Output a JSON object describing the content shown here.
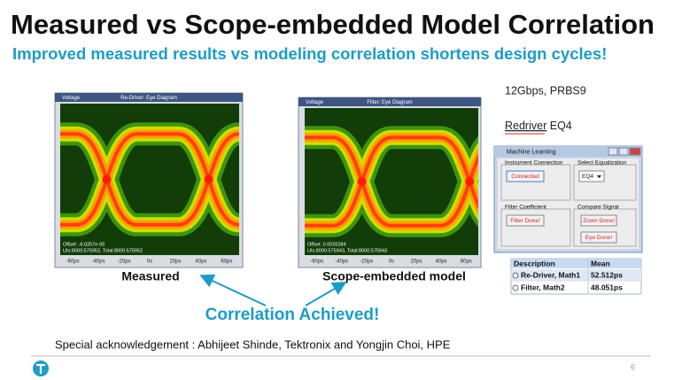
{
  "title": "Measured vs Scope-embedded Model Correlation",
  "subtitle": "Improved measured results vs modeling correlation shortens design cycles!",
  "eye_diagrams": [
    {
      "axis_label": "Voltage",
      "window_title": "Re-Driver: Eye Diagram",
      "offset": "Offset: -6.0257e-05",
      "uis": "UIs:8000:575952, Total:8000:575952",
      "x_ticks": [
        "-60ps",
        "-40ps",
        "-20ps",
        "0s",
        "20ps",
        "40ps",
        "60ps"
      ],
      "caption": "Measured"
    },
    {
      "axis_label": "Voltage",
      "window_title": "Filter: Eye Diagram",
      "offset": "Offset: 0.0020284",
      "uis": "UIs:8000:575943, Total:8000:575943",
      "x_ticks": [
        "-60ps",
        "-40ps",
        "-20ps",
        "0s",
        "20ps",
        "40ps",
        "60ps"
      ],
      "caption": "Scope-embedded model"
    }
  ],
  "callout": "Correlation Achieved!",
  "rate": "12Gbps, PRBS9",
  "redriver": {
    "word": "Redriver",
    "setting": "EQ4"
  },
  "dialog": {
    "title": "Machine Learning",
    "groups": [
      {
        "label": "Instrument Connection",
        "buttons": [
          "Connected"
        ]
      },
      {
        "label": "Select Equalization",
        "select": "EQ4"
      },
      {
        "label": "Filter Coefficient",
        "buttons": [
          "Filter Done!"
        ]
      },
      {
        "label": "Compare Signal",
        "buttons": [
          "Zoom Done!",
          "Eye Done!"
        ]
      }
    ]
  },
  "table": {
    "headers": [
      "Description",
      "Mean"
    ],
    "rows": [
      [
        "Re-Driver, Math1",
        "52.512ps"
      ],
      [
        "Filter, Math2",
        "48.051ps"
      ]
    ]
  },
  "acknowledgement": "Special acknowledgement : Abhijeet Shinde, Tektronix and Yongjin Choi, HPE",
  "page_number": "6"
}
